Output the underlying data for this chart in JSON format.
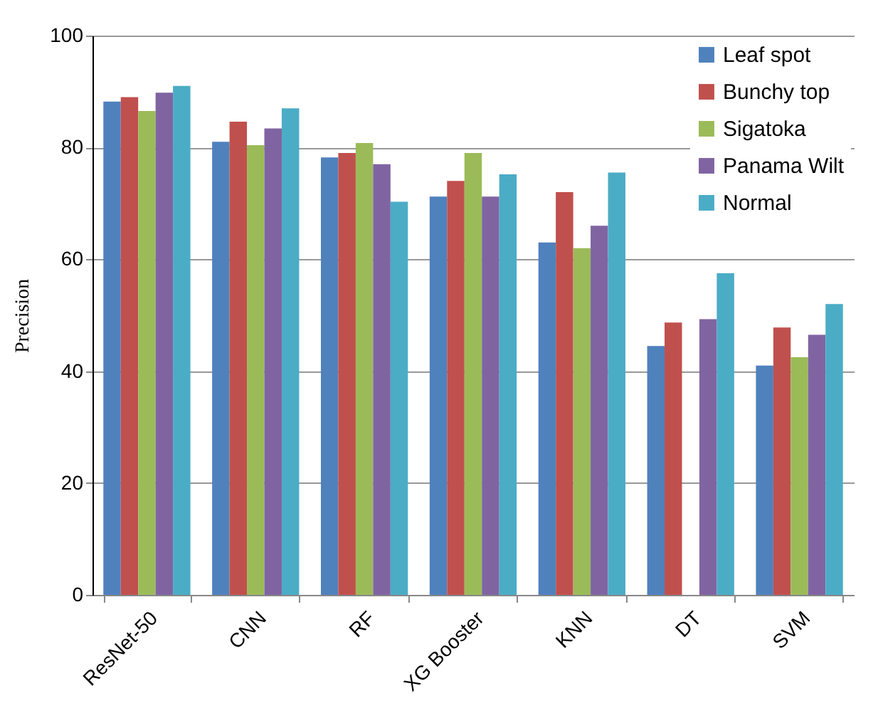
{
  "chart_data": {
    "type": "bar",
    "ylabel": "Precision",
    "categories": [
      "ResNet-50",
      "CNN",
      "RF",
      "XG Booster",
      "KNN",
      "DT",
      "SVM"
    ],
    "series": [
      {
        "name": "Leaf spot",
        "color": "#4f81bd",
        "values": [
          88.2,
          81,
          78.2,
          71.2,
          63,
          44.5,
          41
        ]
      },
      {
        "name": "Bunchy top",
        "color": "#c0504d",
        "values": [
          89,
          84.6,
          79,
          74,
          72,
          48.7,
          47.8
        ]
      },
      {
        "name": "Sigatoka",
        "color": "#9bbb59",
        "values": [
          86.5,
          80.4,
          80.8,
          79,
          62,
          null,
          42.5
        ]
      },
      {
        "name": "Panama Wilt",
        "color": "#8064a2",
        "values": [
          89.8,
          83.4,
          77,
          71.2,
          66,
          49.3,
          46.5
        ]
      },
      {
        "name": "Normal",
        "color": "#4bacc6",
        "values": [
          91,
          87,
          70.3,
          75.2,
          75.5,
          57.5,
          52
        ]
      }
    ],
    "ylim": [
      0,
      100
    ],
    "yticks": [
      0,
      20,
      40,
      60,
      80,
      100
    ],
    "grid": "y",
    "legend": "top right"
  }
}
